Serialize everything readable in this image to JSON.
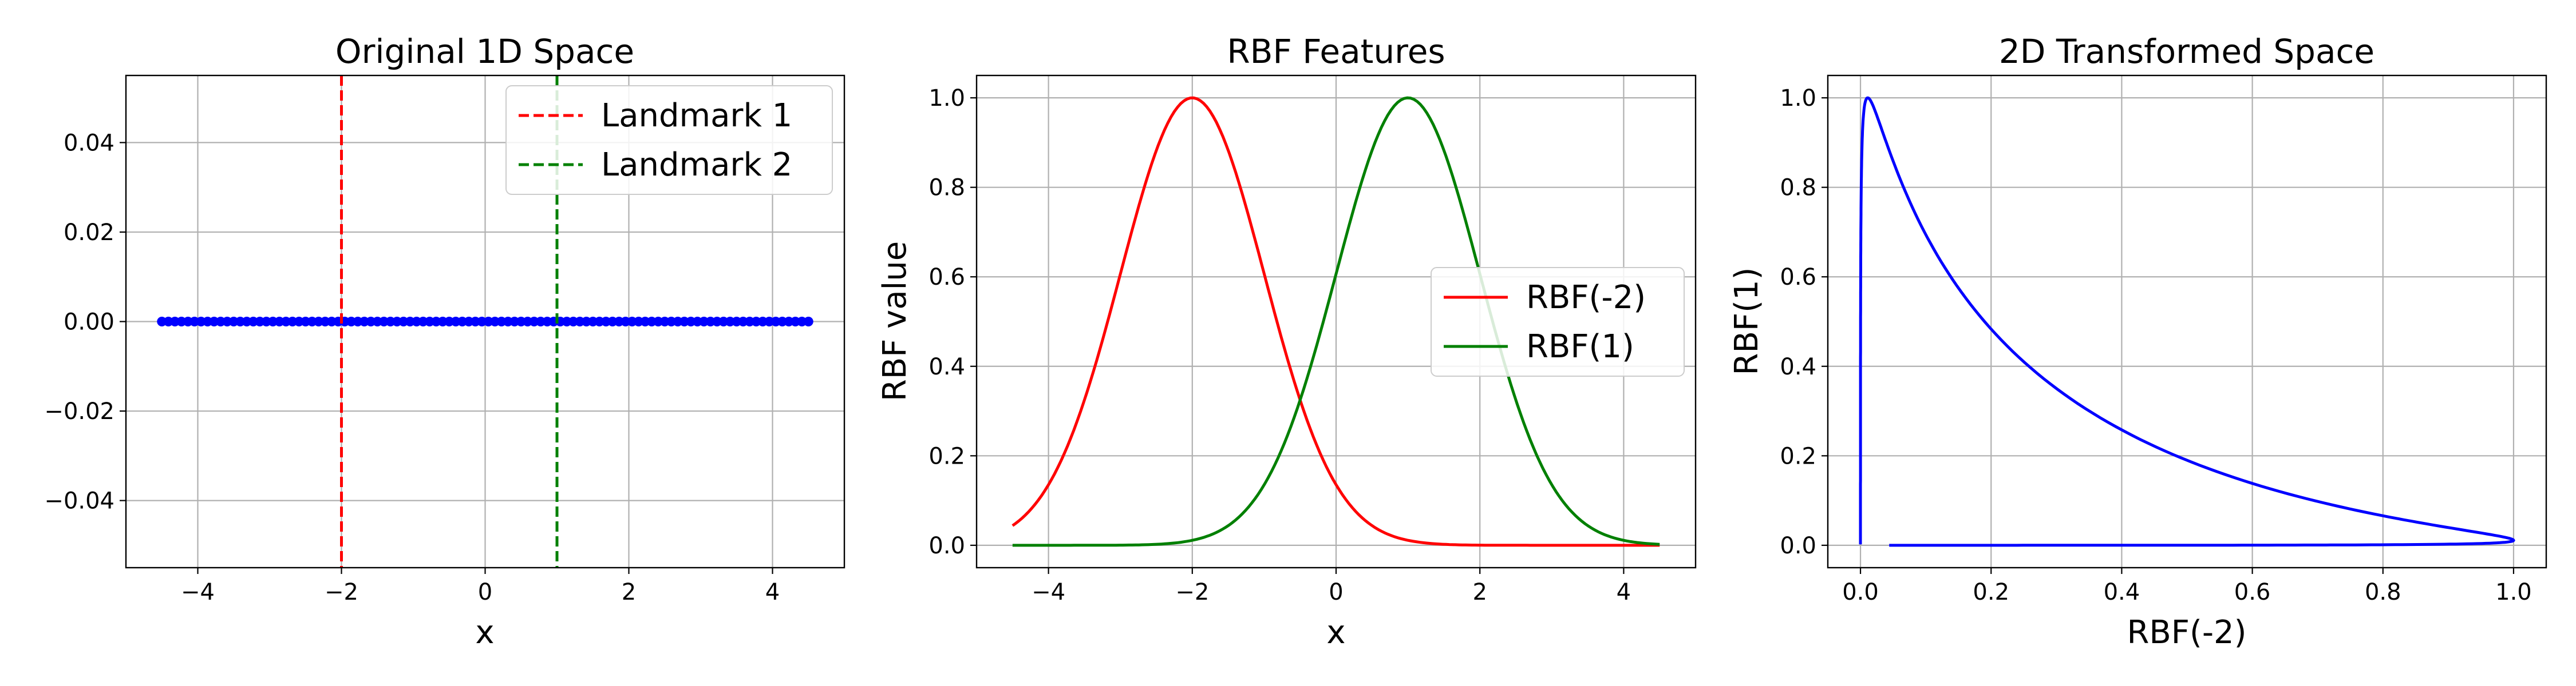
{
  "chart_data": [
    {
      "type": "line",
      "title": "Original 1D Space",
      "xlabel": "x",
      "ylabel": "",
      "xlim": [
        -5,
        5
      ],
      "ylim": [
        -0.055,
        0.055
      ],
      "xticks": [
        -4,
        -2,
        0,
        2,
        4
      ],
      "yticks": [
        -0.04,
        -0.02,
        0.0,
        0.02,
        0.04
      ],
      "xtick_labels": [
        "−4",
        "−2",
        "0",
        "2",
        "4"
      ],
      "ytick_labels": [
        "−0.04",
        "−0.02",
        "0.00",
        "0.02",
        "0.04"
      ],
      "grid": true,
      "legend_position": "top-right",
      "points": {
        "x_start": -4.5,
        "x_end": 4.5,
        "y": 0,
        "color": "#0000ff"
      },
      "vlines": [
        {
          "name": "Landmark 1",
          "x": -2,
          "color": "#ff0000",
          "style": "dashed"
        },
        {
          "name": "Landmark 2",
          "x": 1,
          "color": "#008000",
          "style": "dashed"
        }
      ]
    },
    {
      "type": "line",
      "title": "RBF Features",
      "xlabel": "x",
      "ylabel": "RBF value",
      "xlim": [
        -5,
        5
      ],
      "ylim": [
        -0.05,
        1.05
      ],
      "xticks": [
        -4,
        -2,
        0,
        2,
        4
      ],
      "yticks": [
        0.0,
        0.2,
        0.4,
        0.6,
        0.8,
        1.0
      ],
      "xtick_labels": [
        "−4",
        "−2",
        "0",
        "2",
        "4"
      ],
      "ytick_labels": [
        "0.0",
        "0.2",
        "0.4",
        "0.6",
        "0.8",
        "1.0"
      ],
      "grid": true,
      "legend_position": "center-right",
      "x_range": [
        -4.5,
        4.5
      ],
      "gamma": 0.5,
      "series": [
        {
          "name": "RBF(-2)",
          "center": -2,
          "color": "#ff0000"
        },
        {
          "name": "RBF(1)",
          "center": 1,
          "color": "#008000"
        }
      ]
    },
    {
      "type": "line",
      "title": "2D Transformed Space",
      "xlabel": "RBF(-2)",
      "ylabel": "RBF(1)",
      "xlim": [
        -0.05,
        1.05
      ],
      "ylim": [
        -0.05,
        1.05
      ],
      "xticks": [
        0.0,
        0.2,
        0.4,
        0.6,
        0.8,
        1.0
      ],
      "yticks": [
        0.0,
        0.2,
        0.4,
        0.6,
        0.8,
        1.0
      ],
      "xtick_labels": [
        "0.0",
        "0.2",
        "0.4",
        "0.6",
        "0.8",
        "1.0"
      ],
      "ytick_labels": [
        "0.0",
        "0.2",
        "0.4",
        "0.6",
        "0.8",
        "1.0"
      ],
      "grid": true,
      "x_range": [
        -4.5,
        4.5
      ],
      "gamma": 0.5,
      "curve": {
        "x_center": -2,
        "y_center": 1,
        "color": "#0000ff"
      }
    }
  ]
}
